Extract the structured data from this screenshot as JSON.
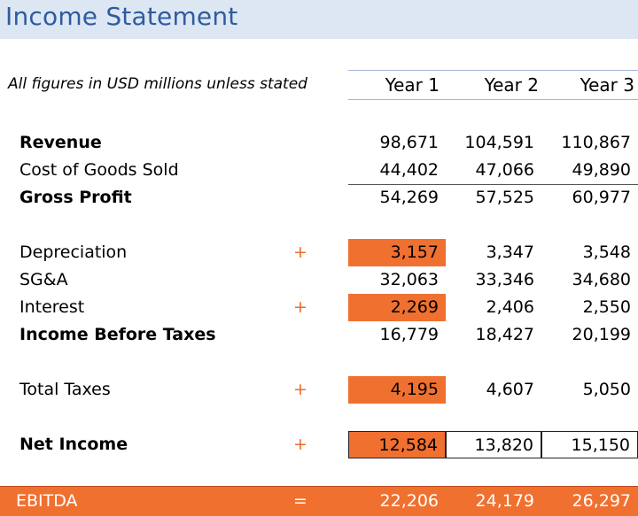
{
  "title": "Income Statement",
  "note": "All figures in USD millions unless stated",
  "columns": [
    "Year 1",
    "Year 2",
    "Year 3"
  ],
  "rows": {
    "revenue": {
      "label": "Revenue",
      "values": [
        "98,671",
        "104,591",
        "110,867"
      ]
    },
    "cogs": {
      "label": "Cost of Goods Sold",
      "values": [
        "44,402",
        "47,066",
        "49,890"
      ]
    },
    "gross_profit": {
      "label": "Gross Profit",
      "values": [
        "54,269",
        "57,525",
        "60,977"
      ]
    },
    "depreciation": {
      "label": "Depreciation",
      "op": "+",
      "values": [
        "3,157",
        "3,347",
        "3,548"
      ]
    },
    "sga": {
      "label": "SG&A",
      "values": [
        "32,063",
        "33,346",
        "34,680"
      ]
    },
    "interest": {
      "label": "Interest",
      "op": "+",
      "values": [
        "2,269",
        "2,406",
        "2,550"
      ]
    },
    "income_before_taxes": {
      "label": "Income Before Taxes",
      "values": [
        "16,779",
        "18,427",
        "20,199"
      ]
    },
    "total_taxes": {
      "label": "Total Taxes",
      "op": "+",
      "values": [
        "4,195",
        "4,607",
        "5,050"
      ]
    },
    "net_income": {
      "label": "Net Income",
      "op": "+",
      "values": [
        "12,584",
        "13,820",
        "15,150"
      ]
    },
    "ebitda": {
      "label": "EBITDA",
      "op": "=",
      "values": [
        "22,206",
        "24,179",
        "26,297"
      ]
    }
  },
  "colors": {
    "accent": "#f07030",
    "title_bar": "#dde7f4",
    "title_text": "#2e5c9e"
  }
}
